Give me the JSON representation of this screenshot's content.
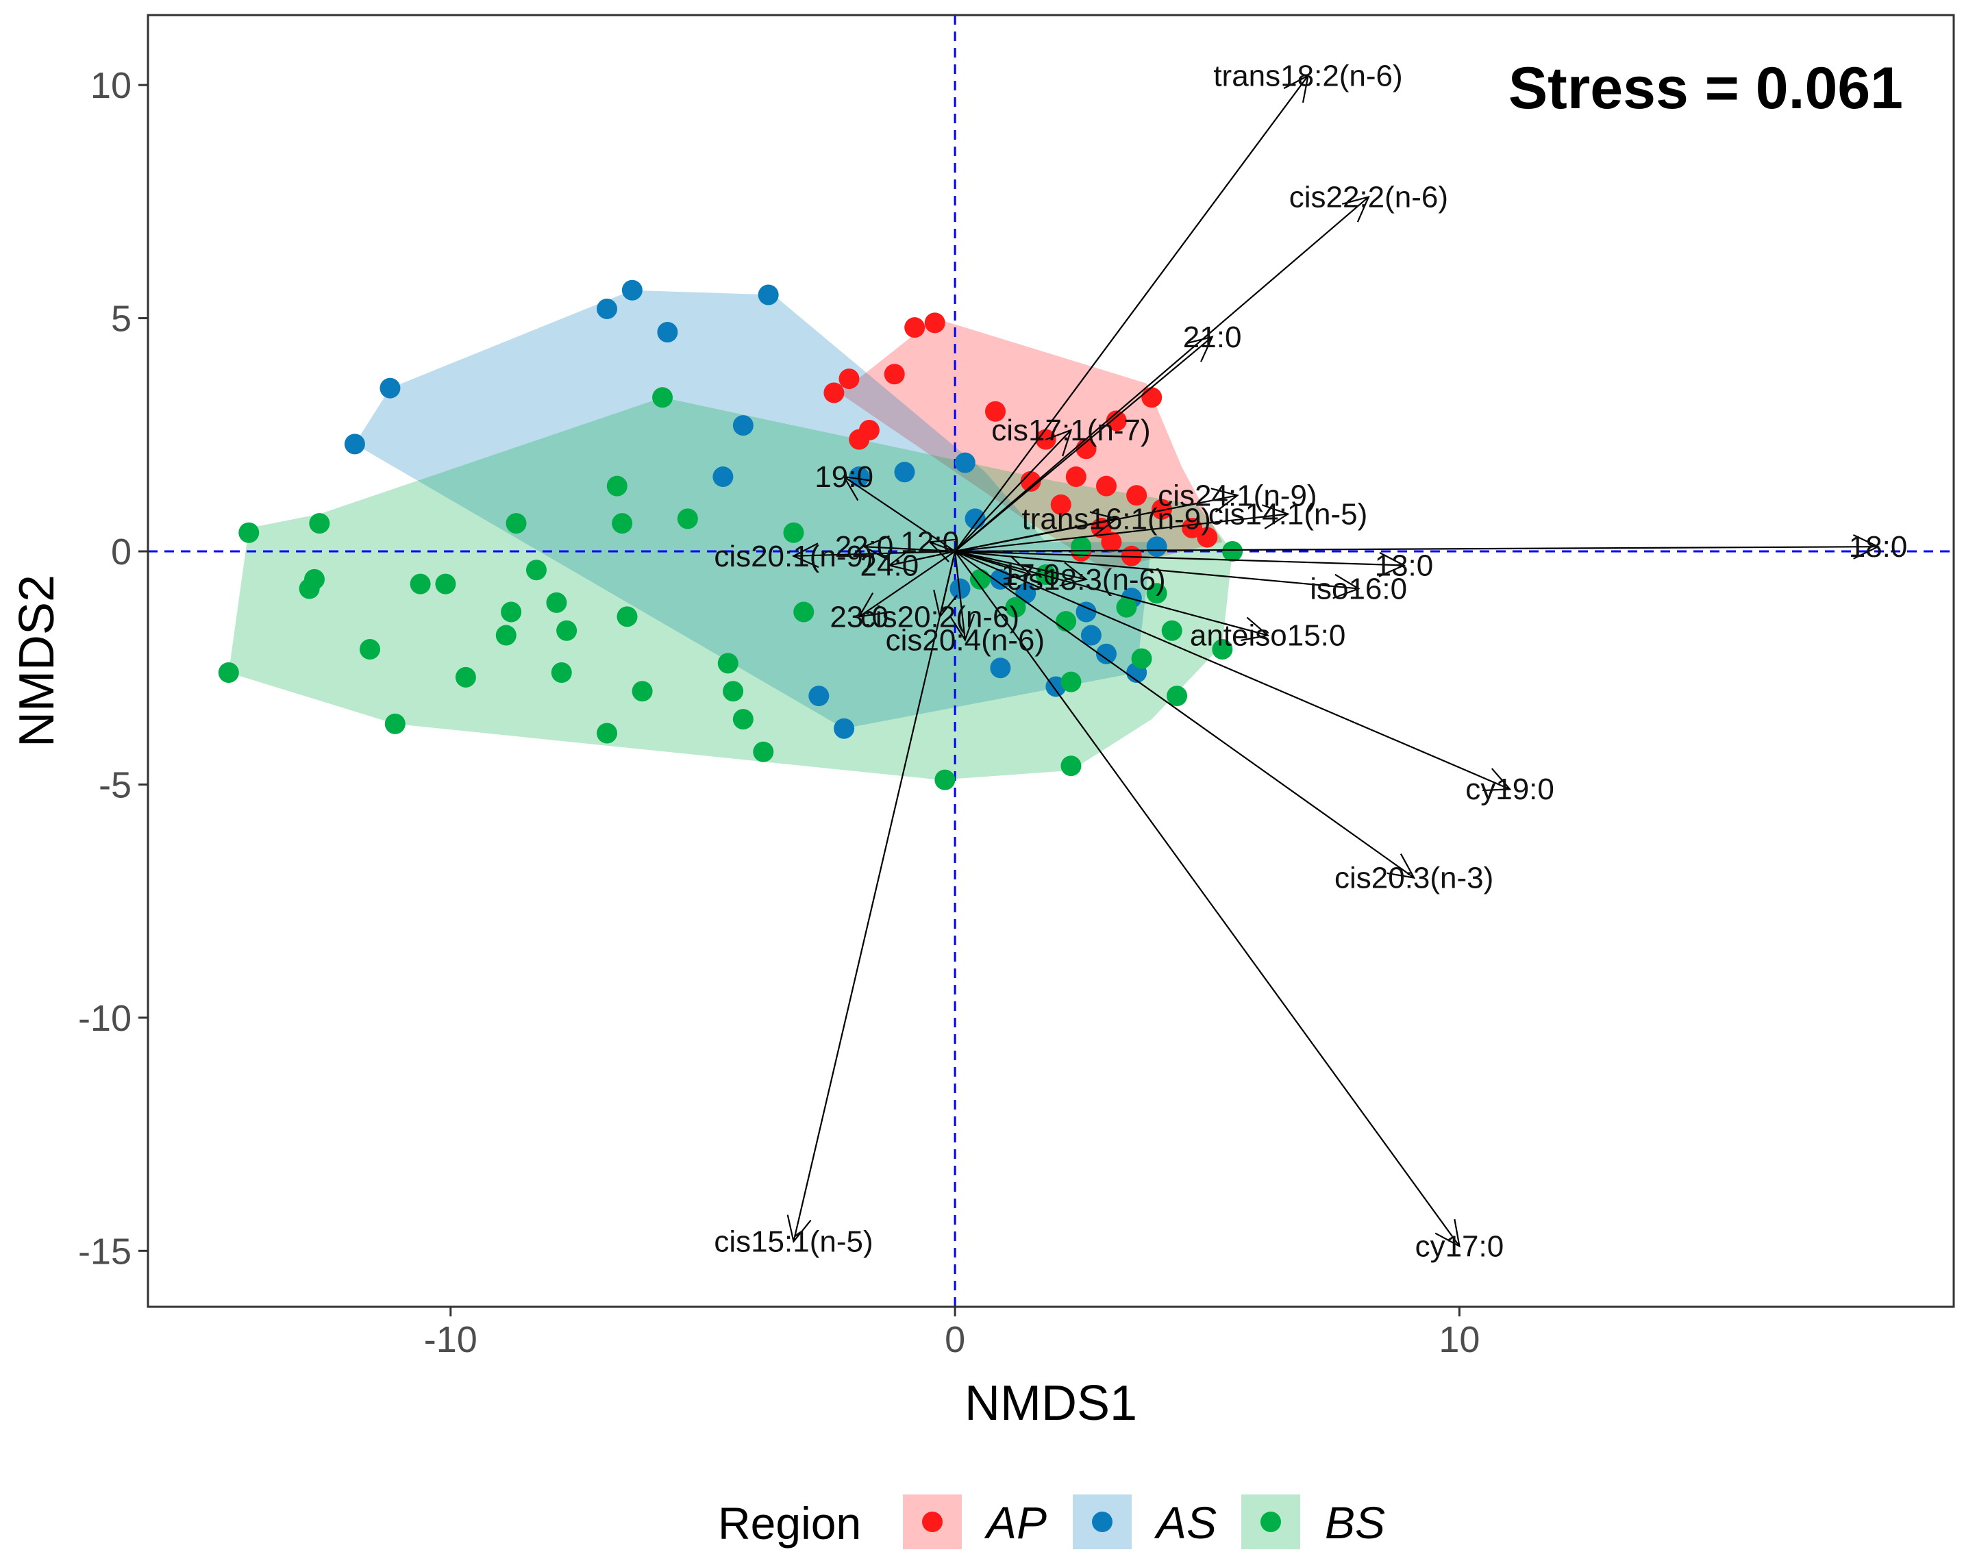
{
  "chart_data": {
    "type": "scatter",
    "title": "",
    "xlabel": "NMDS1",
    "ylabel": "NMDS2",
    "xlim": [
      -16,
      19.8
    ],
    "ylim": [
      -16.2,
      11.5
    ],
    "xticks": [
      -10,
      0,
      10
    ],
    "yticks": [
      -15,
      -10,
      -5,
      0,
      5,
      10
    ],
    "grid": false,
    "annotation": "Stress = 0.061",
    "legend": {
      "title": "Region",
      "position": "bottom"
    },
    "series": [
      {
        "name": "AP",
        "color": "#ff1a1a",
        "hull": [
          [
            -0.4,
            5.0
          ],
          [
            3.8,
            3.6
          ],
          [
            4.5,
            1.8
          ],
          [
            5.3,
            0.2
          ],
          [
            3.0,
            -0.4
          ],
          [
            1.5,
            0.6
          ],
          [
            -2.3,
            3.4
          ],
          [
            -1.8,
            3.8
          ]
        ],
        "points": [
          [
            -0.8,
            4.8
          ],
          [
            -0.4,
            4.9
          ],
          [
            -1.2,
            3.8
          ],
          [
            -2.1,
            3.7
          ],
          [
            -2.4,
            3.4
          ],
          [
            -1.7,
            2.6
          ],
          [
            -1.9,
            2.4
          ],
          [
            0.8,
            3.0
          ],
          [
            1.8,
            2.4
          ],
          [
            2.6,
            2.2
          ],
          [
            3.2,
            2.8
          ],
          [
            3.9,
            3.3
          ],
          [
            2.4,
            1.6
          ],
          [
            3.0,
            1.4
          ],
          [
            1.5,
            1.5
          ],
          [
            2.1,
            1.0
          ],
          [
            3.6,
            1.2
          ],
          [
            4.1,
            0.9
          ],
          [
            4.7,
            0.5
          ],
          [
            5.0,
            0.3
          ],
          [
            2.9,
            0.5
          ],
          [
            3.1,
            0.2
          ],
          [
            2.5,
            0.0
          ],
          [
            3.5,
            -0.1
          ]
        ]
      },
      {
        "name": "AS",
        "color": "#0a7cbc",
        "hull": [
          [
            -6.4,
            5.6
          ],
          [
            -3.6,
            5.5
          ],
          [
            0.6,
            1.7
          ],
          [
            1.8,
            0.2
          ],
          [
            3.9,
            0.2
          ],
          [
            3.6,
            -2.6
          ],
          [
            -2.2,
            -3.8
          ],
          [
            -11.9,
            2.3
          ],
          [
            -11.2,
            3.5
          ]
        ],
        "points": [
          [
            -6.4,
            5.6
          ],
          [
            -3.7,
            5.5
          ],
          [
            -6.9,
            5.2
          ],
          [
            -5.7,
            4.7
          ],
          [
            -11.2,
            3.5
          ],
          [
            -11.9,
            2.3
          ],
          [
            -4.2,
            2.7
          ],
          [
            -4.6,
            1.6
          ],
          [
            -1.0,
            1.7
          ],
          [
            0.2,
            1.9
          ],
          [
            -1.9,
            1.6
          ],
          [
            0.4,
            0.7
          ],
          [
            0.9,
            -0.6
          ],
          [
            1.4,
            -0.9
          ],
          [
            2.6,
            -1.3
          ],
          [
            2.7,
            -1.8
          ],
          [
            3.0,
            -2.2
          ],
          [
            3.5,
            -1.0
          ],
          [
            4.0,
            0.1
          ],
          [
            0.9,
            -2.5
          ],
          [
            2.0,
            -2.9
          ],
          [
            3.6,
            -2.6
          ],
          [
            -2.7,
            -3.1
          ],
          [
            -2.2,
            -3.8
          ],
          [
            0.1,
            -0.8
          ]
        ]
      },
      {
        "name": "BS",
        "color": "#00ae47",
        "hull": [
          [
            -5.8,
            3.3
          ],
          [
            2.0,
            1.5
          ],
          [
            4.8,
            1.0
          ],
          [
            5.5,
            0.0
          ],
          [
            5.3,
            -2.0
          ],
          [
            3.9,
            -3.6
          ],
          [
            2.3,
            -4.7
          ],
          [
            -0.3,
            -4.9
          ],
          [
            -11.1,
            -3.7
          ],
          [
            -14.4,
            -2.6
          ],
          [
            -14.0,
            0.5
          ],
          [
            -12.6,
            0.8
          ]
        ],
        "points": [
          [
            -5.8,
            3.3
          ],
          [
            -6.7,
            1.4
          ],
          [
            -6.6,
            0.6
          ],
          [
            -8.7,
            0.6
          ],
          [
            -5.3,
            0.7
          ],
          [
            -3.2,
            0.4
          ],
          [
            -14.0,
            0.4
          ],
          [
            -12.6,
            0.6
          ],
          [
            -12.7,
            -0.6
          ],
          [
            -12.8,
            -0.8
          ],
          [
            -10.6,
            -0.7
          ],
          [
            -10.1,
            -0.7
          ],
          [
            -8.3,
            -0.4
          ],
          [
            -7.9,
            -1.1
          ],
          [
            -8.8,
            -1.3
          ],
          [
            -8.9,
            -1.8
          ],
          [
            -7.7,
            -1.7
          ],
          [
            -6.5,
            -1.4
          ],
          [
            -11.6,
            -2.1
          ],
          [
            -9.7,
            -2.7
          ],
          [
            -7.8,
            -2.6
          ],
          [
            -6.2,
            -3.0
          ],
          [
            -4.5,
            -2.4
          ],
          [
            -4.4,
            -3.0
          ],
          [
            -4.2,
            -3.6
          ],
          [
            -3.8,
            -4.3
          ],
          [
            -6.9,
            -3.9
          ],
          [
            -11.1,
            -3.7
          ],
          [
            -14.4,
            -2.6
          ],
          [
            -3.0,
            -1.3
          ],
          [
            -0.2,
            -4.9
          ],
          [
            2.3,
            -4.6
          ],
          [
            2.3,
            -2.8
          ],
          [
            2.2,
            -1.5
          ],
          [
            3.4,
            -1.2
          ],
          [
            3.7,
            -2.3
          ],
          [
            4.3,
            -1.7
          ],
          [
            4.4,
            -3.1
          ],
          [
            5.3,
            -2.1
          ],
          [
            5.5,
            0.0
          ],
          [
            4.0,
            -0.9
          ],
          [
            1.8,
            -0.5
          ],
          [
            0.5,
            -0.6
          ],
          [
            1.2,
            -1.2
          ],
          [
            2.5,
            0.1
          ]
        ]
      }
    ],
    "arrows": [
      {
        "label": "trans18:2(n-6)",
        "x": 7.0,
        "y": 10.2
      },
      {
        "label": "cis22:2(n-6)",
        "x": 8.2,
        "y": 7.6
      },
      {
        "label": "21:0",
        "x": 5.1,
        "y": 4.6
      },
      {
        "label": "cis17:1(n-7)",
        "x": 2.3,
        "y": 2.6
      },
      {
        "label": "cis24:1(n-9)",
        "x": 5.6,
        "y": 1.2
      },
      {
        "label": "cis14:1(n-5)",
        "x": 6.6,
        "y": 0.8
      },
      {
        "label": "trans16:1(n-9)",
        "x": 3.2,
        "y": 0.7
      },
      {
        "label": "18:0",
        "x": 18.3,
        "y": 0.1
      },
      {
        "label": "13:0",
        "x": 8.9,
        "y": -0.3
      },
      {
        "label": "iso16:0",
        "x": 8.0,
        "y": -0.8
      },
      {
        "label": "anteiso15:0",
        "x": 6.2,
        "y": -1.8
      },
      {
        "label": "cis18:3(n-6)",
        "x": 2.6,
        "y": -0.6
      },
      {
        "label": "17:0",
        "x": 1.5,
        "y": -0.5
      },
      {
        "label": "cy19:0",
        "x": 11.0,
        "y": -5.1
      },
      {
        "label": "cis20:3(n-3)",
        "x": 9.1,
        "y": -7.0
      },
      {
        "label": "cy17:0",
        "x": 10.0,
        "y": -14.9
      },
      {
        "label": "cis15:1(n-5)",
        "x": -3.2,
        "y": -14.8
      },
      {
        "label": "19:0",
        "x": -2.2,
        "y": 1.6
      },
      {
        "label": "23:0",
        "x": -1.9,
        "y": -1.4
      },
      {
        "label": "cis20:2(n-6)",
        "x": -0.3,
        "y": -1.4
      },
      {
        "label": "cis20:4(n-6)",
        "x": 0.2,
        "y": -1.9
      },
      {
        "label": "24:0",
        "x": -1.3,
        "y": -0.3
      },
      {
        "label": "cis20:1(n-9)",
        "x": -3.2,
        "y": -0.1
      },
      {
        "label": "22:0",
        "x": -1.8,
        "y": 0.1
      },
      {
        "label": "12:0",
        "x": -0.5,
        "y": 0.2
      }
    ]
  }
}
